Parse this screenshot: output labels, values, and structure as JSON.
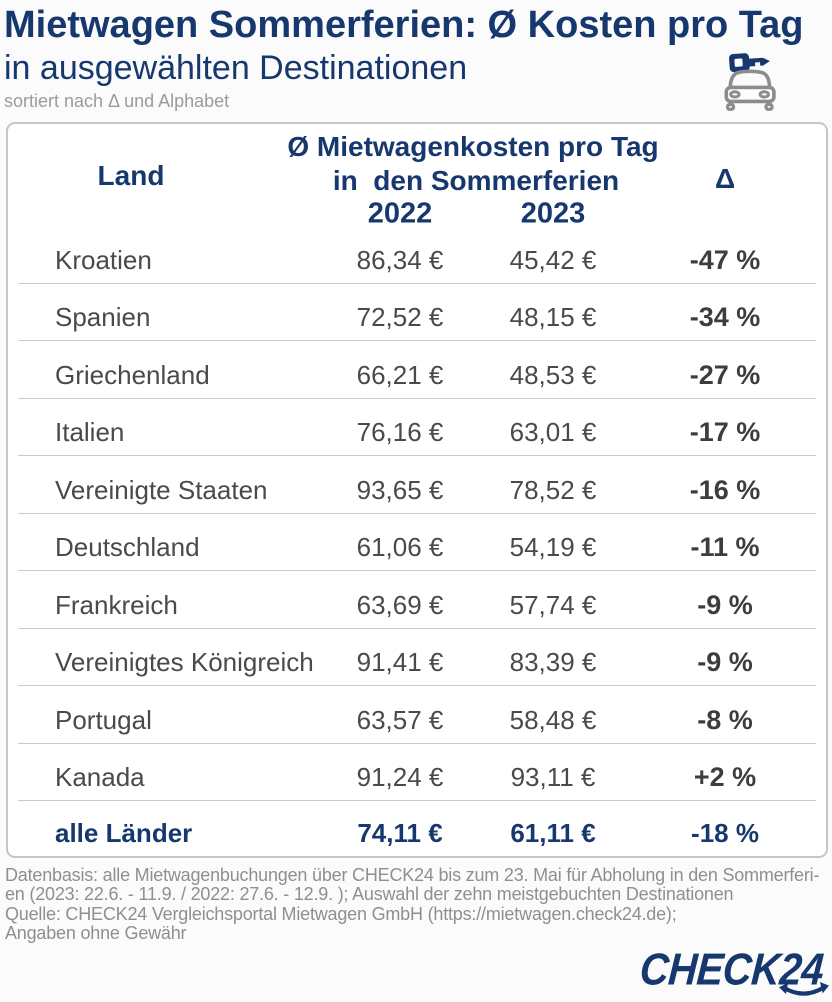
{
  "header": {
    "title": "Mietwagen Sommerferien: Ø Kosten pro Tag",
    "subtitle": "in ausgewählten Destinationen",
    "sort_note": "sortiert nach Δ und Alphabet",
    "icon": "car-with-key-icon"
  },
  "table": {
    "col_land": "Land",
    "col_group_line1": "Ø Mietwagenkosten pro Tag",
    "col_group_line2": "in  den Sommerferien",
    "col_year_2022": "2022",
    "col_year_2023": "2023",
    "col_delta": "Δ",
    "rows": [
      {
        "country": "Kroatien",
        "y2022": "86,34 €",
        "y2023": "45,42 €",
        "delta": "-47 %"
      },
      {
        "country": "Spanien",
        "y2022": "72,52 €",
        "y2023": "48,15 €",
        "delta": "-34 %"
      },
      {
        "country": "Griechenland",
        "y2022": "66,21 €",
        "y2023": "48,53 €",
        "delta": "-27 %"
      },
      {
        "country": "Italien",
        "y2022": "76,16 €",
        "y2023": "63,01 €",
        "delta": "-17 %"
      },
      {
        "country": "Vereinigte Staaten",
        "y2022": "93,65 €",
        "y2023": "78,52 €",
        "delta": "-16 %"
      },
      {
        "country": "Deutschland",
        "y2022": "61,06 €",
        "y2023": "54,19 €",
        "delta": "-11 %"
      },
      {
        "country": "Frankreich",
        "y2022": "63,69 €",
        "y2023": "57,74 €",
        "delta": "-9 %"
      },
      {
        "country": "Vereinigtes Königreich",
        "y2022": "91,41 €",
        "y2023": "83,39 €",
        "delta": "-9 %"
      },
      {
        "country": "Portugal",
        "y2022": "63,57 €",
        "y2023": "58,48 €",
        "delta": "-8 %"
      },
      {
        "country": "Kanada",
        "y2022": "91,24 €",
        "y2023": "93,11 €",
        "delta": "+2 %"
      }
    ],
    "total": {
      "country": "alle Länder",
      "y2022": "74,11 €",
      "y2023": "61,11 €",
      "delta": "-18 %"
    }
  },
  "chart_data": {
    "type": "table",
    "title": "Mietwagen Sommerferien: Ø Kosten pro Tag",
    "subtitle": "in ausgewählten Destinationen",
    "note": "sortiert nach Δ und Alphabet",
    "columns": [
      "Land",
      "2022",
      "2023",
      "Δ"
    ],
    "unit": "€ pro Tag",
    "rows": [
      [
        "Kroatien",
        86.34,
        45.42,
        -47
      ],
      [
        "Spanien",
        72.52,
        48.15,
        -34
      ],
      [
        "Griechenland",
        66.21,
        48.53,
        -27
      ],
      [
        "Italien",
        76.16,
        63.01,
        -17
      ],
      [
        "Vereinigte Staaten",
        93.65,
        78.52,
        -16
      ],
      [
        "Deutschland",
        61.06,
        54.19,
        -11
      ],
      [
        "Frankreich",
        63.69,
        57.74,
        -9
      ],
      [
        "Vereinigtes Königreich",
        91.41,
        83.39,
        -9
      ],
      [
        "Portugal",
        63.57,
        58.48,
        -8
      ],
      [
        "Kanada",
        91.24,
        93.11,
        2
      ]
    ],
    "total_row": [
      "alle Länder",
      74.11,
      61.11,
      -18
    ]
  },
  "footer": {
    "lines": [
      "Datenbasis: alle Mietwagenbuchungen über CHECK24 bis zum 23. Mai für Abholung in den Sommerferi-",
      "en (2023: 22.6. - 11.9. / 2022: 27.6. - 12.9. ); Auswahl der zehn meistgebuchten Destinationen",
      "Quelle: CHECK24 Vergleichsportal Mietwagen GmbH (https://mietwagen.check24.de);",
      "Angaben ohne Gewähr"
    ]
  },
  "logo": {
    "text": "CHECK24"
  },
  "colors": {
    "navy": "#16386f",
    "row_text": "#4b4a49",
    "delta_text": "#3d3d3c",
    "muted_gray": "#9b9b9b",
    "footer_gray": "#8f8f8f",
    "separator": "#cbcbcb",
    "card_border": "#c6c6c6",
    "icon_gray": "#8c8c8c",
    "background": "#fbfbfb",
    "card_background": "#ffffff"
  }
}
